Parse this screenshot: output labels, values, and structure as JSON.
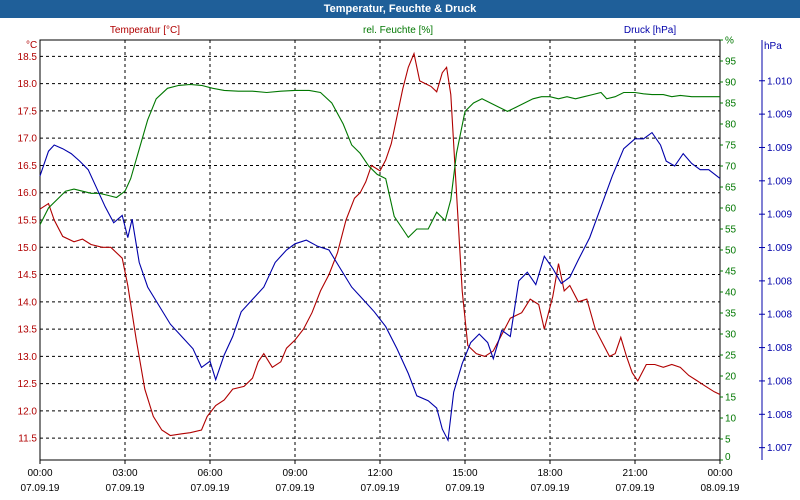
{
  "window": {
    "title": "Temperatur, Feuchte & Druck"
  },
  "chart_data": {
    "type": "line",
    "title": "Temperatur, Feuchte & Druck",
    "colors": {
      "temperature": "#b00000",
      "humidity": "#007700",
      "pressure": "#0000aa",
      "grid": "#000000"
    },
    "x": {
      "label": "",
      "ticks": [
        {
          "hour": 0,
          "time": "00:00",
          "date": "07.09.19"
        },
        {
          "hour": 3,
          "time": "03:00",
          "date": "07.09.19"
        },
        {
          "hour": 6,
          "time": "06:00",
          "date": "07.09.19"
        },
        {
          "hour": 9,
          "time": "09:00",
          "date": "07.09.19"
        },
        {
          "hour": 12,
          "time": "12:00",
          "date": "07.09.19"
        },
        {
          "hour": 15,
          "time": "15:00",
          "date": "07.09.19"
        },
        {
          "hour": 18,
          "time": "18:00",
          "date": "07.09.19"
        },
        {
          "hour": 21,
          "time": "21:00",
          "date": "07.09.19"
        },
        {
          "hour": 24,
          "time": "00:00",
          "date": "08.09.19"
        }
      ],
      "range": [
        0,
        24
      ]
    },
    "axes": {
      "temperature": {
        "unit": "°C",
        "legend": "Temperatur [°C]",
        "range": [
          11.1,
          18.8
        ],
        "ticks": [
          "11.5",
          "12.0",
          "12.5",
          "13.0",
          "13.5",
          "14.0",
          "14.5",
          "15.0",
          "15.5",
          "16.0",
          "16.5",
          "17.0",
          "17.5",
          "18.0",
          "18.5"
        ]
      },
      "humidity": {
        "unit": "%",
        "legend": "rel. Feuchte [%]",
        "range": [
          0,
          100
        ],
        "ticks": [
          "0",
          "5",
          "10",
          "15",
          "20",
          "25",
          "30",
          "35",
          "40",
          "45",
          "50",
          "55",
          "60",
          "65",
          "70",
          "75",
          "80",
          "85",
          "90",
          "95",
          "%"
        ]
      },
      "pressure": {
        "unit": "hPa",
        "legend": "Druck [hPa]",
        "range": [
          1006.9,
          1010.3
        ],
        "ticks": [
          "1.007",
          "1.008",
          "1.008",
          "1.008",
          "1.008",
          "1.008",
          "1.009",
          "1.009",
          "1.009",
          "1.009",
          "1.009",
          "1.010"
        ]
      }
    },
    "series": [
      {
        "name": "Temperatur",
        "axis": "temperature",
        "points": [
          [
            0.0,
            15.7
          ],
          [
            0.3,
            15.8
          ],
          [
            0.5,
            15.5
          ],
          [
            0.8,
            15.2
          ],
          [
            1.2,
            15.1
          ],
          [
            1.5,
            15.15
          ],
          [
            1.8,
            15.05
          ],
          [
            2.2,
            15.0
          ],
          [
            2.5,
            15.0
          ],
          [
            2.9,
            14.8
          ],
          [
            3.1,
            14.3
          ],
          [
            3.4,
            13.3
          ],
          [
            3.7,
            12.4
          ],
          [
            4.0,
            11.9
          ],
          [
            4.3,
            11.65
          ],
          [
            4.6,
            11.55
          ],
          [
            5.0,
            11.58
          ],
          [
            5.3,
            11.6
          ],
          [
            5.7,
            11.65
          ],
          [
            5.9,
            11.9
          ],
          [
            6.2,
            12.1
          ],
          [
            6.5,
            12.2
          ],
          [
            6.8,
            12.4
          ],
          [
            7.2,
            12.45
          ],
          [
            7.5,
            12.6
          ],
          [
            7.7,
            12.9
          ],
          [
            7.9,
            13.05
          ],
          [
            8.2,
            12.8
          ],
          [
            8.5,
            12.9
          ],
          [
            8.7,
            13.15
          ],
          [
            9.0,
            13.3
          ],
          [
            9.3,
            13.5
          ],
          [
            9.6,
            13.8
          ],
          [
            9.9,
            14.2
          ],
          [
            10.2,
            14.5
          ],
          [
            10.5,
            14.9
          ],
          [
            10.8,
            15.5
          ],
          [
            11.1,
            15.9
          ],
          [
            11.3,
            16.0
          ],
          [
            11.5,
            16.2
          ],
          [
            11.7,
            16.5
          ],
          [
            12.0,
            16.4
          ],
          [
            12.2,
            16.6
          ],
          [
            12.4,
            16.9
          ],
          [
            12.6,
            17.4
          ],
          [
            12.8,
            17.9
          ],
          [
            13.0,
            18.3
          ],
          [
            13.2,
            18.55
          ],
          [
            13.4,
            18.05
          ],
          [
            13.6,
            18.0
          ],
          [
            13.8,
            17.95
          ],
          [
            14.0,
            17.85
          ],
          [
            14.2,
            18.2
          ],
          [
            14.35,
            18.3
          ],
          [
            14.5,
            17.8
          ],
          [
            14.7,
            16.0
          ],
          [
            14.9,
            14.2
          ],
          [
            15.1,
            13.2
          ],
          [
            15.4,
            13.05
          ],
          [
            15.7,
            13.0
          ],
          [
            16.0,
            13.1
          ],
          [
            16.3,
            13.4
          ],
          [
            16.6,
            13.7
          ],
          [
            17.0,
            13.8
          ],
          [
            17.3,
            14.05
          ],
          [
            17.6,
            13.95
          ],
          [
            17.8,
            13.5
          ],
          [
            18.1,
            14.1
          ],
          [
            18.3,
            14.7
          ],
          [
            18.5,
            14.2
          ],
          [
            18.7,
            14.3
          ],
          [
            19.0,
            14.0
          ],
          [
            19.3,
            14.05
          ],
          [
            19.6,
            13.5
          ],
          [
            19.9,
            13.2
          ],
          [
            20.1,
            13.0
          ],
          [
            20.3,
            13.05
          ],
          [
            20.5,
            13.35
          ],
          [
            20.7,
            13.0
          ],
          [
            20.9,
            12.7
          ],
          [
            21.1,
            12.55
          ],
          [
            21.4,
            12.85
          ],
          [
            21.7,
            12.85
          ],
          [
            22.0,
            12.8
          ],
          [
            22.3,
            12.85
          ],
          [
            22.6,
            12.8
          ],
          [
            22.9,
            12.65
          ],
          [
            23.2,
            12.55
          ],
          [
            23.5,
            12.45
          ],
          [
            23.8,
            12.35
          ],
          [
            24.0,
            12.3
          ]
        ]
      },
      {
        "name": "rel. Feuchte",
        "axis": "humidity",
        "points": [
          [
            0.0,
            56
          ],
          [
            0.3,
            60
          ],
          [
            0.6,
            62
          ],
          [
            0.9,
            64
          ],
          [
            1.2,
            64.5
          ],
          [
            1.5,
            64.0
          ],
          [
            1.8,
            63.5
          ],
          [
            2.1,
            63.5
          ],
          [
            2.4,
            63.0
          ],
          [
            2.7,
            62.5
          ],
          [
            3.0,
            64
          ],
          [
            3.2,
            67
          ],
          [
            3.5,
            74
          ],
          [
            3.8,
            81
          ],
          [
            4.1,
            86
          ],
          [
            4.5,
            88.5
          ],
          [
            4.9,
            89.2
          ],
          [
            5.3,
            89.4
          ],
          [
            5.7,
            89.2
          ],
          [
            6.1,
            88.5
          ],
          [
            6.5,
            88.0
          ],
          [
            7.0,
            87.8
          ],
          [
            7.5,
            87.8
          ],
          [
            8.0,
            87.5
          ],
          [
            8.5,
            87.8
          ],
          [
            9.0,
            88.0
          ],
          [
            9.5,
            88.0
          ],
          [
            9.9,
            87.5
          ],
          [
            10.3,
            85
          ],
          [
            10.7,
            80
          ],
          [
            11.0,
            75
          ],
          [
            11.3,
            73
          ],
          [
            11.6,
            70
          ],
          [
            11.9,
            68
          ],
          [
            12.2,
            67
          ],
          [
            12.5,
            58
          ],
          [
            12.8,
            55
          ],
          [
            13.0,
            53
          ],
          [
            13.3,
            55
          ],
          [
            13.7,
            55
          ],
          [
            14.0,
            59
          ],
          [
            14.3,
            57
          ],
          [
            14.5,
            62
          ],
          [
            14.7,
            73
          ],
          [
            15.0,
            83
          ],
          [
            15.3,
            85
          ],
          [
            15.6,
            86
          ],
          [
            15.9,
            85
          ],
          [
            16.2,
            84
          ],
          [
            16.5,
            83
          ],
          [
            16.8,
            84
          ],
          [
            17.1,
            85
          ],
          [
            17.4,
            86
          ],
          [
            17.7,
            86.5
          ],
          [
            18.0,
            86.5
          ],
          [
            18.3,
            86.0
          ],
          [
            18.6,
            86.5
          ],
          [
            18.9,
            86.0
          ],
          [
            19.2,
            86.5
          ],
          [
            19.5,
            87
          ],
          [
            19.8,
            87.5
          ],
          [
            20.0,
            86
          ],
          [
            20.3,
            86.5
          ],
          [
            20.6,
            87.5
          ],
          [
            21.0,
            87.5
          ],
          [
            21.3,
            87.2
          ],
          [
            21.6,
            87.0
          ],
          [
            22.0,
            87.0
          ],
          [
            22.3,
            86.5
          ],
          [
            22.6,
            86.8
          ],
          [
            23.0,
            86.5
          ],
          [
            23.3,
            86.5
          ],
          [
            23.6,
            86.5
          ],
          [
            24.0,
            86.5
          ]
        ]
      },
      {
        "name": "Druck",
        "axis": "pressure",
        "points": [
          [
            0.0,
            1009.2
          ],
          [
            0.3,
            1009.4
          ],
          [
            0.5,
            1009.45
          ],
          [
            0.8,
            1009.42
          ],
          [
            1.1,
            1009.38
          ],
          [
            1.4,
            1009.32
          ],
          [
            1.7,
            1009.25
          ],
          [
            2.0,
            1009.1
          ],
          [
            2.3,
            1008.95
          ],
          [
            2.6,
            1008.82
          ],
          [
            2.9,
            1008.88
          ],
          [
            3.1,
            1008.7
          ],
          [
            3.25,
            1008.85
          ],
          [
            3.5,
            1008.5
          ],
          [
            3.8,
            1008.3
          ],
          [
            4.2,
            1008.15
          ],
          [
            4.6,
            1008.0
          ],
          [
            5.0,
            1007.9
          ],
          [
            5.4,
            1007.8
          ],
          [
            5.7,
            1007.65
          ],
          [
            6.0,
            1007.7
          ],
          [
            6.2,
            1007.55
          ],
          [
            6.5,
            1007.75
          ],
          [
            6.8,
            1007.9
          ],
          [
            7.1,
            1008.1
          ],
          [
            7.5,
            1008.2
          ],
          [
            7.9,
            1008.3
          ],
          [
            8.3,
            1008.5
          ],
          [
            8.7,
            1008.6
          ],
          [
            9.0,
            1008.65
          ],
          [
            9.4,
            1008.68
          ],
          [
            9.8,
            1008.63
          ],
          [
            10.2,
            1008.6
          ],
          [
            10.6,
            1008.45
          ],
          [
            11.0,
            1008.3
          ],
          [
            11.4,
            1008.2
          ],
          [
            11.8,
            1008.1
          ],
          [
            12.2,
            1007.98
          ],
          [
            12.6,
            1007.8
          ],
          [
            13.0,
            1007.6
          ],
          [
            13.3,
            1007.42
          ],
          [
            13.7,
            1007.38
          ],
          [
            14.0,
            1007.32
          ],
          [
            14.2,
            1007.15
          ],
          [
            14.4,
            1007.06
          ],
          [
            14.6,
            1007.45
          ],
          [
            14.9,
            1007.68
          ],
          [
            15.2,
            1007.85
          ],
          [
            15.5,
            1007.92
          ],
          [
            15.8,
            1007.85
          ],
          [
            16.0,
            1007.72
          ],
          [
            16.3,
            1007.95
          ],
          [
            16.6,
            1007.9
          ],
          [
            16.9,
            1008.35
          ],
          [
            17.2,
            1008.42
          ],
          [
            17.5,
            1008.32
          ],
          [
            17.8,
            1008.55
          ],
          [
            18.1,
            1008.45
          ],
          [
            18.4,
            1008.33
          ],
          [
            18.7,
            1008.38
          ],
          [
            19.0,
            1008.52
          ],
          [
            19.4,
            1008.7
          ],
          [
            19.8,
            1008.95
          ],
          [
            20.2,
            1009.2
          ],
          [
            20.6,
            1009.42
          ],
          [
            21.0,
            1009.5
          ],
          [
            21.3,
            1009.5
          ],
          [
            21.6,
            1009.55
          ],
          [
            21.9,
            1009.45
          ],
          [
            22.1,
            1009.32
          ],
          [
            22.4,
            1009.28
          ],
          [
            22.7,
            1009.38
          ],
          [
            23.0,
            1009.3
          ],
          [
            23.3,
            1009.25
          ],
          [
            23.6,
            1009.25
          ],
          [
            24.0,
            1009.18
          ]
        ]
      }
    ]
  }
}
